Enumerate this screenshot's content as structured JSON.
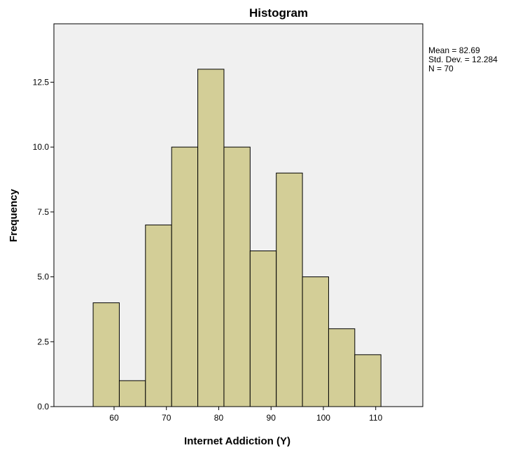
{
  "chart_data": {
    "type": "bar",
    "title": "Histogram",
    "xlabel": "Internet Addiction (Y)",
    "ylabel": "Frequency",
    "bin_edges": [
      56,
      61,
      66,
      71,
      76,
      81,
      86,
      91,
      96,
      101,
      106,
      111
    ],
    "values": [
      4,
      1,
      7,
      10,
      13,
      10,
      6,
      9,
      5,
      3,
      2
    ],
    "xlim": [
      48.5,
      119
    ],
    "ylim": [
      0,
      14.75
    ],
    "x_ticks": [
      60,
      70,
      80,
      90,
      100,
      110
    ],
    "x_tick_labels": [
      "60",
      "70",
      "80",
      "90",
      "100",
      "110"
    ],
    "y_ticks": [
      0,
      2.5,
      5,
      7.5,
      10,
      12.5
    ],
    "y_tick_labels": [
      "0.0",
      "2.5",
      "5.0",
      "7.5",
      "10.0",
      "12.5"
    ],
    "grid": false,
    "legend_position": "top-right",
    "stats": {
      "mean": "Mean = 82.69",
      "std": "Std. Dev. = 12.284",
      "n": "N = 70"
    },
    "colors": {
      "plot_bg": "#f0f0f0",
      "bar_fill": "#d3ce97",
      "bar_stroke": "#000000"
    }
  }
}
